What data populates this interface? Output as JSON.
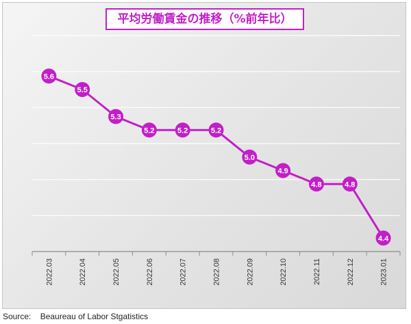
{
  "chart_data": {
    "type": "line",
    "title": "平均労働賃金の推移（%前年比）",
    "categories": [
      "2022.03",
      "2022.04",
      "2022.05",
      "2022.06",
      "2022.07",
      "2022.08",
      "2022.09",
      "2022.10",
      "2022.11",
      "2022.12",
      "2023.01"
    ],
    "series": [
      {
        "values": [
          5.6,
          5.5,
          5.3,
          5.2,
          5.2,
          5.2,
          5.0,
          4.9,
          4.8,
          4.8,
          4.4
        ]
      }
    ],
    "ylim": [
      4.3,
      5.9
    ],
    "grid": true,
    "line_color": "#c21fc8",
    "marker_color": "#c21fc8",
    "label_color": "#ffffff",
    "xlabel": "",
    "ylabel": ""
  },
  "source": {
    "label": "Source:",
    "text": "Beaureau of Labor Stgatistics"
  }
}
